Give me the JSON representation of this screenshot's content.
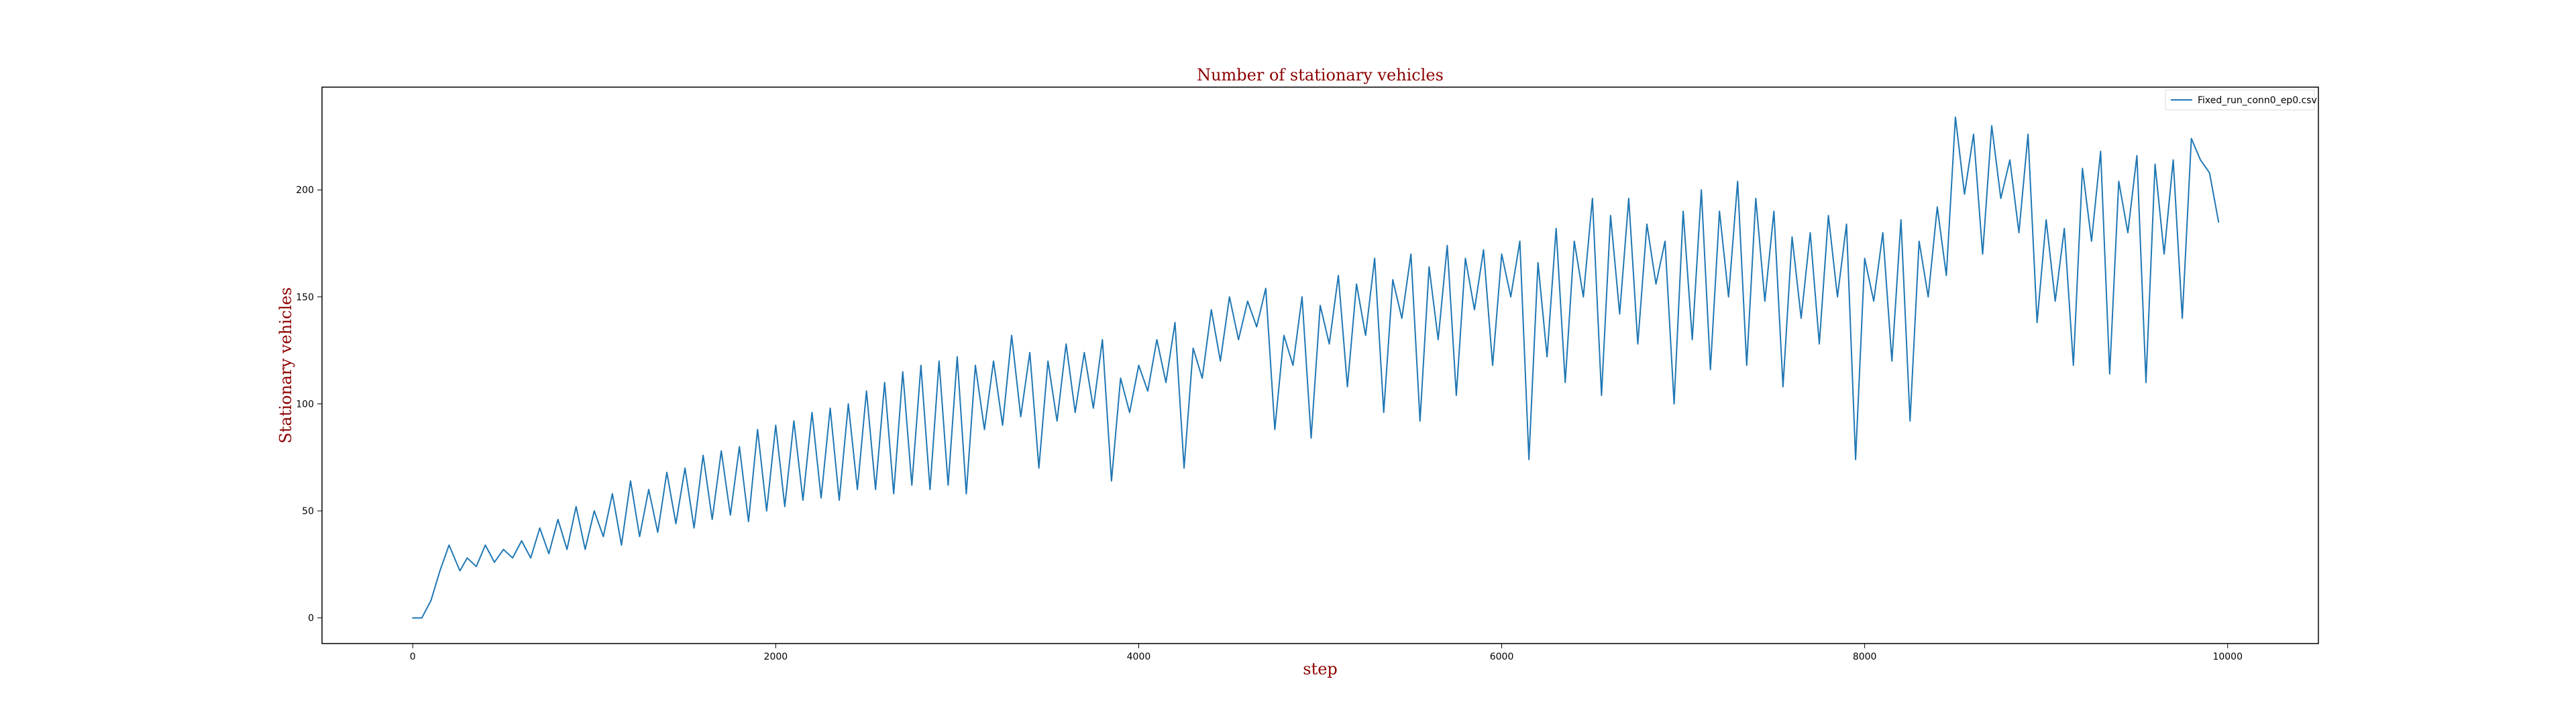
{
  "chart_data": {
    "type": "line",
    "title": "Number of stationary vehicles",
    "xlabel": "step",
    "ylabel": "Stationary vehicles",
    "xlim": [
      -500,
      10500
    ],
    "ylim": [
      -12,
      248
    ],
    "xticks": [
      0,
      2000,
      4000,
      6000,
      8000,
      10000
    ],
    "yticks": [
      0,
      50,
      100,
      150,
      200
    ],
    "grid": false,
    "legend_position": "top-right",
    "series": [
      {
        "name": "Fixed_run_conn0_ep0.csv",
        "color": "#1f77b4",
        "points": [
          [
            0,
            0
          ],
          [
            50,
            0
          ],
          [
            100,
            8
          ],
          [
            150,
            22
          ],
          [
            200,
            34
          ],
          [
            260,
            22
          ],
          [
            300,
            28
          ],
          [
            350,
            24
          ],
          [
            400,
            34
          ],
          [
            450,
            26
          ],
          [
            500,
            32
          ],
          [
            550,
            28
          ],
          [
            600,
            36
          ],
          [
            650,
            28
          ],
          [
            700,
            42
          ],
          [
            750,
            30
          ],
          [
            800,
            46
          ],
          [
            850,
            32
          ],
          [
            900,
            52
          ],
          [
            950,
            32
          ],
          [
            1000,
            50
          ],
          [
            1050,
            38
          ],
          [
            1100,
            58
          ],
          [
            1150,
            34
          ],
          [
            1200,
            64
          ],
          [
            1250,
            38
          ],
          [
            1300,
            60
          ],
          [
            1350,
            40
          ],
          [
            1400,
            68
          ],
          [
            1450,
            44
          ],
          [
            1500,
            70
          ],
          [
            1550,
            42
          ],
          [
            1600,
            76
          ],
          [
            1650,
            46
          ],
          [
            1700,
            78
          ],
          [
            1750,
            48
          ],
          [
            1800,
            80
          ],
          [
            1850,
            45
          ],
          [
            1900,
            88
          ],
          [
            1950,
            50
          ],
          [
            2000,
            90
          ],
          [
            2050,
            52
          ],
          [
            2100,
            92
          ],
          [
            2150,
            55
          ],
          [
            2200,
            96
          ],
          [
            2250,
            56
          ],
          [
            2300,
            98
          ],
          [
            2350,
            55
          ],
          [
            2400,
            100
          ],
          [
            2450,
            60
          ],
          [
            2500,
            106
          ],
          [
            2550,
            60
          ],
          [
            2600,
            110
          ],
          [
            2650,
            58
          ],
          [
            2700,
            115
          ],
          [
            2750,
            62
          ],
          [
            2800,
            118
          ],
          [
            2850,
            60
          ],
          [
            2900,
            120
          ],
          [
            2950,
            62
          ],
          [
            3000,
            122
          ],
          [
            3050,
            58
          ],
          [
            3100,
            118
          ],
          [
            3150,
            88
          ],
          [
            3200,
            120
          ],
          [
            3250,
            90
          ],
          [
            3300,
            132
          ],
          [
            3350,
            94
          ],
          [
            3400,
            124
          ],
          [
            3450,
            70
          ],
          [
            3500,
            120
          ],
          [
            3550,
            92
          ],
          [
            3600,
            128
          ],
          [
            3650,
            96
          ],
          [
            3700,
            124
          ],
          [
            3750,
            98
          ],
          [
            3800,
            130
          ],
          [
            3850,
            64
          ],
          [
            3900,
            112
          ],
          [
            3950,
            96
          ],
          [
            4000,
            118
          ],
          [
            4050,
            106
          ],
          [
            4100,
            130
          ],
          [
            4150,
            110
          ],
          [
            4200,
            138
          ],
          [
            4250,
            70
          ],
          [
            4300,
            126
          ],
          [
            4350,
            112
          ],
          [
            4400,
            144
          ],
          [
            4450,
            120
          ],
          [
            4500,
            150
          ],
          [
            4550,
            130
          ],
          [
            4600,
            148
          ],
          [
            4650,
            136
          ],
          [
            4700,
            154
          ],
          [
            4750,
            88
          ],
          [
            4800,
            132
          ],
          [
            4850,
            118
          ],
          [
            4900,
            150
          ],
          [
            4950,
            84
          ],
          [
            5000,
            146
          ],
          [
            5050,
            128
          ],
          [
            5100,
            160
          ],
          [
            5150,
            108
          ],
          [
            5200,
            156
          ],
          [
            5250,
            132
          ],
          [
            5300,
            168
          ],
          [
            5350,
            96
          ],
          [
            5400,
            158
          ],
          [
            5450,
            140
          ],
          [
            5500,
            170
          ],
          [
            5550,
            92
          ],
          [
            5600,
            164
          ],
          [
            5650,
            130
          ],
          [
            5700,
            174
          ],
          [
            5750,
            104
          ],
          [
            5800,
            168
          ],
          [
            5850,
            144
          ],
          [
            5900,
            172
          ],
          [
            5950,
            118
          ],
          [
            6000,
            170
          ],
          [
            6050,
            150
          ],
          [
            6100,
            176
          ],
          [
            6150,
            74
          ],
          [
            6200,
            166
          ],
          [
            6250,
            122
          ],
          [
            6300,
            182
          ],
          [
            6350,
            110
          ],
          [
            6400,
            176
          ],
          [
            6450,
            150
          ],
          [
            6500,
            196
          ],
          [
            6550,
            104
          ],
          [
            6600,
            188
          ],
          [
            6650,
            142
          ],
          [
            6700,
            196
          ],
          [
            6750,
            128
          ],
          [
            6800,
            184
          ],
          [
            6850,
            156
          ],
          [
            6900,
            176
          ],
          [
            6950,
            100
          ],
          [
            7000,
            190
          ],
          [
            7050,
            130
          ],
          [
            7100,
            200
          ],
          [
            7150,
            116
          ],
          [
            7200,
            190
          ],
          [
            7250,
            150
          ],
          [
            7300,
            204
          ],
          [
            7350,
            118
          ],
          [
            7400,
            196
          ],
          [
            7450,
            148
          ],
          [
            7500,
            190
          ],
          [
            7550,
            108
          ],
          [
            7600,
            178
          ],
          [
            7650,
            140
          ],
          [
            7700,
            180
          ],
          [
            7750,
            128
          ],
          [
            7800,
            188
          ],
          [
            7850,
            150
          ],
          [
            7900,
            184
          ],
          [
            7950,
            74
          ],
          [
            8000,
            168
          ],
          [
            8050,
            148
          ],
          [
            8100,
            180
          ],
          [
            8150,
            120
          ],
          [
            8200,
            186
          ],
          [
            8250,
            92
          ],
          [
            8300,
            176
          ],
          [
            8350,
            150
          ],
          [
            8400,
            192
          ],
          [
            8450,
            160
          ],
          [
            8500,
            234
          ],
          [
            8550,
            198
          ],
          [
            8600,
            226
          ],
          [
            8650,
            170
          ],
          [
            8700,
            230
          ],
          [
            8750,
            196
          ],
          [
            8800,
            214
          ],
          [
            8850,
            180
          ],
          [
            8900,
            226
          ],
          [
            8950,
            138
          ],
          [
            9000,
            186
          ],
          [
            9050,
            148
          ],
          [
            9100,
            182
          ],
          [
            9150,
            118
          ],
          [
            9200,
            210
          ],
          [
            9250,
            176
          ],
          [
            9300,
            218
          ],
          [
            9350,
            114
          ],
          [
            9400,
            204
          ],
          [
            9450,
            180
          ],
          [
            9500,
            216
          ],
          [
            9550,
            110
          ],
          [
            9600,
            212
          ],
          [
            9650,
            170
          ],
          [
            9700,
            214
          ],
          [
            9750,
            140
          ],
          [
            9800,
            224
          ],
          [
            9850,
            214
          ],
          [
            9900,
            208
          ],
          [
            9950,
            185
          ]
        ]
      }
    ]
  }
}
